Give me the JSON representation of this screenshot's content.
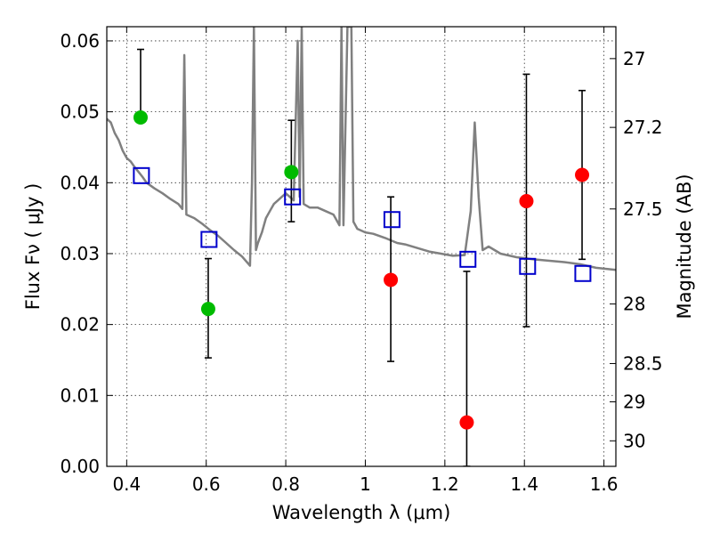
{
  "chart_data": {
    "type": "scatter",
    "xlabel": "Wavelength  λ (μm)",
    "ylabel": "Flux  Fν  ( μJy )",
    "y2label": "Magnitude (AB)",
    "xlim": [
      0.35,
      1.63
    ],
    "ylim": [
      0.0,
      0.062
    ],
    "xticks": [
      0.4,
      0.6,
      0.8,
      1.0,
      1.2,
      1.4,
      1.6
    ],
    "xtick_labels": [
      "0.4",
      "0.6",
      "0.8",
      "1",
      "1.2",
      "1.4",
      "1.6"
    ],
    "yticks": [
      0.0,
      0.01,
      0.02,
      0.03,
      0.04,
      0.05,
      0.06
    ],
    "ytick_labels": [
      "0.00",
      "0.01",
      "0.02",
      "0.03",
      "0.04",
      "0.05",
      "0.06"
    ],
    "y2ticks": [
      {
        "label": "27",
        "flux": 0.0575
      },
      {
        "label": "27.2",
        "flux": 0.0478
      },
      {
        "label": "27.5",
        "flux": 0.0363
      },
      {
        "label": "28",
        "flux": 0.0229
      },
      {
        "label": "28.5",
        "flux": 0.0145
      },
      {
        "label": "29",
        "flux": 0.0091
      },
      {
        "label": "30",
        "flux": 0.0036
      }
    ],
    "grid": true,
    "model_spectrum": {
      "color": "#808080",
      "points": [
        [
          0.35,
          0.049
        ],
        [
          0.36,
          0.0485
        ],
        [
          0.37,
          0.047
        ],
        [
          0.38,
          0.046
        ],
        [
          0.39,
          0.0445
        ],
        [
          0.4,
          0.0435
        ],
        [
          0.41,
          0.043
        ],
        [
          0.42,
          0.0422
        ],
        [
          0.43,
          0.0415
        ],
        [
          0.44,
          0.0408
        ],
        [
          0.45,
          0.04
        ],
        [
          0.47,
          0.0392
        ],
        [
          0.49,
          0.0385
        ],
        [
          0.51,
          0.0377
        ],
        [
          0.53,
          0.037
        ],
        [
          0.54,
          0.0363
        ],
        [
          0.545,
          0.058
        ],
        [
          0.55,
          0.0355
        ],
        [
          0.57,
          0.035
        ],
        [
          0.59,
          0.0342
        ],
        [
          0.61,
          0.0333
        ],
        [
          0.63,
          0.0325
        ],
        [
          0.65,
          0.0315
        ],
        [
          0.67,
          0.0305
        ],
        [
          0.69,
          0.0296
        ],
        [
          0.71,
          0.0283
        ],
        [
          0.715,
          0.04
        ],
        [
          0.72,
          0.062
        ],
        [
          0.725,
          0.0305
        ],
        [
          0.73,
          0.0315
        ],
        [
          0.74,
          0.033
        ],
        [
          0.75,
          0.035
        ],
        [
          0.76,
          0.036
        ],
        [
          0.77,
          0.037
        ],
        [
          0.78,
          0.0375
        ],
        [
          0.79,
          0.038
        ],
        [
          0.8,
          0.0385
        ],
        [
          0.81,
          0.038
        ],
        [
          0.82,
          0.0375
        ],
        [
          0.83,
          0.06
        ],
        [
          0.835,
          0.038
        ],
        [
          0.84,
          0.062
        ],
        [
          0.845,
          0.037
        ],
        [
          0.86,
          0.0365
        ],
        [
          0.88,
          0.0365
        ],
        [
          0.9,
          0.036
        ],
        [
          0.92,
          0.0355
        ],
        [
          0.935,
          0.034
        ],
        [
          0.94,
          0.062
        ],
        [
          0.945,
          0.034
        ],
        [
          0.955,
          0.062
        ],
        [
          0.96,
          0.062
        ],
        [
          0.965,
          0.062
        ],
        [
          0.97,
          0.0345
        ],
        [
          0.98,
          0.0335
        ],
        [
          1.0,
          0.033
        ],
        [
          1.02,
          0.0328
        ],
        [
          1.05,
          0.0322
        ],
        [
          1.08,
          0.0315
        ],
        [
          1.1,
          0.0313
        ],
        [
          1.13,
          0.0308
        ],
        [
          1.16,
          0.0303
        ],
        [
          1.19,
          0.03
        ],
        [
          1.22,
          0.0297
        ],
        [
          1.25,
          0.0298
        ],
        [
          1.265,
          0.036
        ],
        [
          1.275,
          0.0485
        ],
        [
          1.285,
          0.038
        ],
        [
          1.295,
          0.0305
        ],
        [
          1.31,
          0.031
        ],
        [
          1.34,
          0.03
        ],
        [
          1.38,
          0.0295
        ],
        [
          1.42,
          0.0292
        ],
        [
          1.46,
          0.029
        ],
        [
          1.5,
          0.0288
        ],
        [
          1.54,
          0.0285
        ],
        [
          1.58,
          0.028
        ],
        [
          1.63,
          0.0277
        ]
      ]
    },
    "observed": [
      {
        "x": 0.435,
        "y": 0.0492,
        "yerr_low": null,
        "yerr_high": 0.0588,
        "color": "#00bb00"
      },
      {
        "x": 0.605,
        "y": 0.0222,
        "yerr_low": 0.0153,
        "yerr_high": 0.0293,
        "color": "#00bb00"
      },
      {
        "x": 0.814,
        "y": 0.0415,
        "yerr_low": 0.0345,
        "yerr_high": 0.0488,
        "color": "#00bb00"
      },
      {
        "x": 1.064,
        "y": 0.0263,
        "yerr_low": 0.0148,
        "yerr_high": 0.038,
        "color": "#ff0000"
      },
      {
        "x": 1.255,
        "y": 0.0062,
        "yerr_low": 0.0,
        "yerr_high": 0.0275,
        "color": "#ff0000"
      },
      {
        "x": 1.405,
        "y": 0.0374,
        "yerr_low": 0.0197,
        "yerr_high": 0.0553,
        "color": "#ff0000"
      },
      {
        "x": 1.545,
        "y": 0.0411,
        "yerr_low": 0.0292,
        "yerr_high": 0.053,
        "color": "#ff0000"
      }
    ],
    "model_photometry": {
      "color": "#0000cc",
      "points": [
        [
          0.437,
          0.041
        ],
        [
          0.607,
          0.032
        ],
        [
          0.817,
          0.038
        ],
        [
          1.067,
          0.0348
        ],
        [
          1.258,
          0.0292
        ],
        [
          1.408,
          0.0282
        ],
        [
          1.547,
          0.0272
        ]
      ]
    }
  }
}
